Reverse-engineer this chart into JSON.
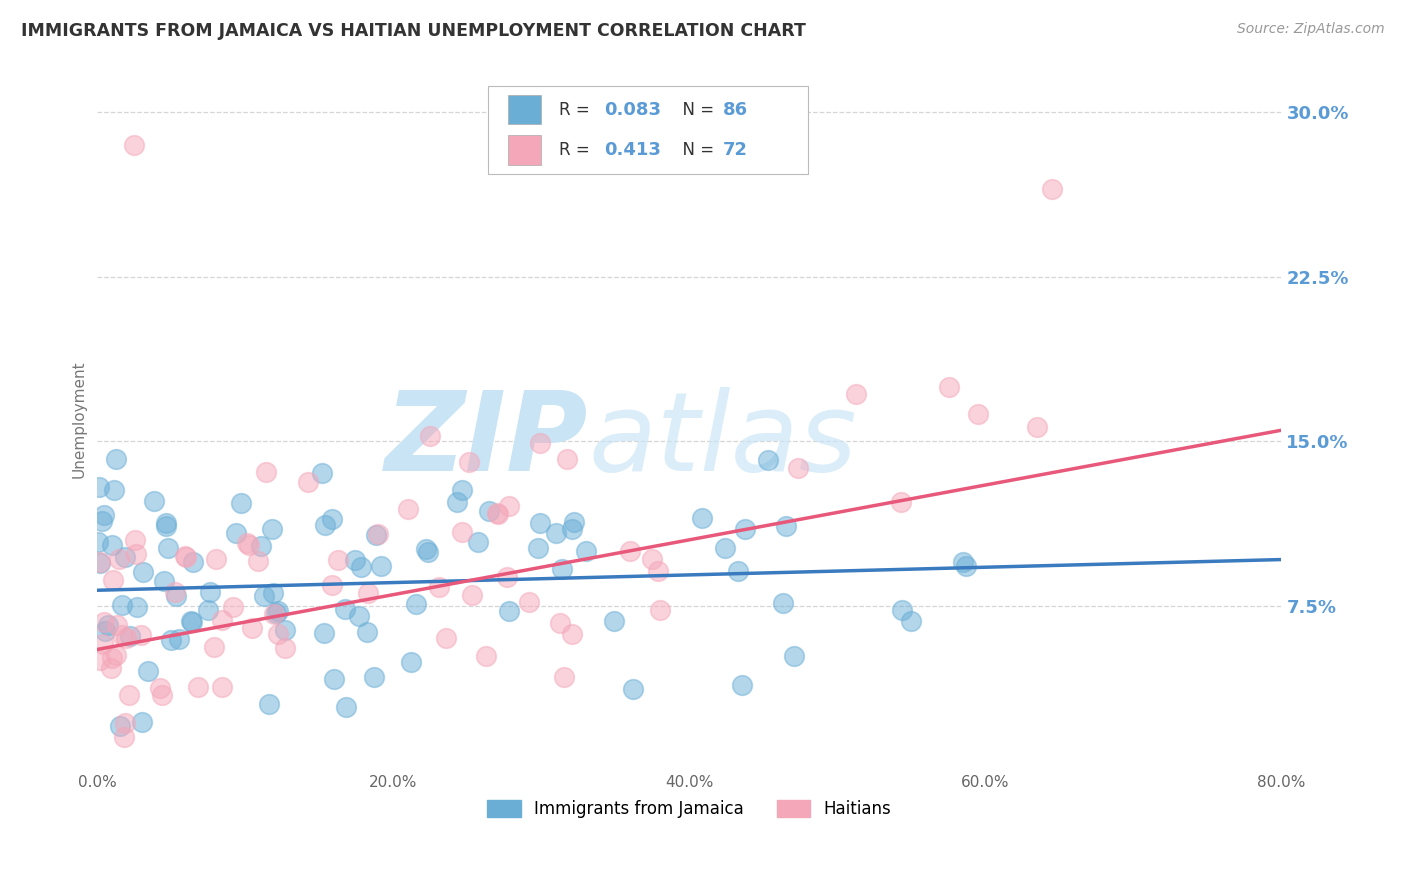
{
  "title": "IMMIGRANTS FROM JAMAICA VS HAITIAN UNEMPLOYMENT CORRELATION CHART",
  "source": "Source: ZipAtlas.com",
  "ylabel": "Unemployment",
  "xlim": [
    0.0,
    0.8
  ],
  "ylim": [
    0.0,
    0.32
  ],
  "xticks": [
    0.0,
    0.2,
    0.4,
    0.6,
    0.8
  ],
  "xtick_labels": [
    "0.0%",
    "20.0%",
    "40.0%",
    "60.0%",
    "80.0%"
  ],
  "ytick_labels": [
    "7.5%",
    "15.0%",
    "22.5%",
    "30.0%"
  ],
  "ytick_values": [
    0.075,
    0.15,
    0.225,
    0.3
  ],
  "blue_color": "#6aaed6",
  "pink_color": "#f4a7b9",
  "blue_line_color": "#3a7bbf",
  "pink_line_color": "#e8587a",
  "legend_R1": "0.083",
  "legend_N1": "86",
  "legend_R2": "0.413",
  "legend_N2": "72",
  "legend_label1": "Immigrants from Jamaica",
  "legend_label2": "Haitians",
  "title_color": "#333333",
  "axis_label_color": "#5b9bd5",
  "grid_color": "#cccccc",
  "background_color": "#ffffff",
  "watermark_color": "#c8e4f5",
  "source_color": "#999999",
  "blue_trend_start": 0.082,
  "blue_trend_end": 0.096,
  "pink_trend_start": 0.055,
  "pink_trend_end": 0.155,
  "seed_blue": 42,
  "seed_pink": 99
}
